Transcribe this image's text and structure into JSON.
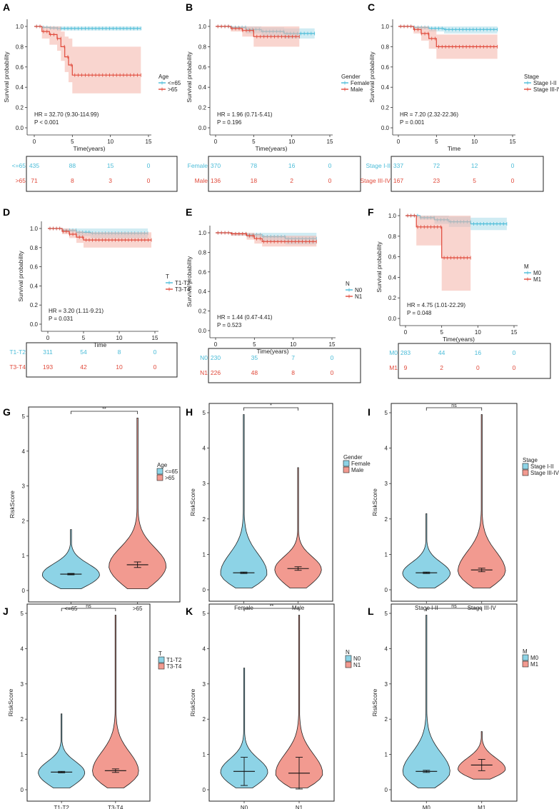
{
  "colors": {
    "blue": "#4bbcd8",
    "red": "#e0493a",
    "blue_fill": "#a9dcea",
    "red_fill": "#f4b2a8",
    "violin_blue": "#8dd3e6",
    "violin_red": "#f29a90"
  },
  "km_axis": {
    "ylabel": "Survival probability",
    "yticks": [
      "0.0",
      "0.2",
      "0.4",
      "0.6",
      "0.8",
      "1.0"
    ],
    "xticks": [
      "0",
      "5",
      "10",
      "15"
    ]
  },
  "violin_axis": {
    "ylabel": "RiskScore",
    "yticks": [
      "0",
      "1",
      "2",
      "3",
      "4",
      "5"
    ]
  },
  "chart_data": [
    {
      "type": "line",
      "panel": "A",
      "legend_title": "Age",
      "xlabel": "Time(years)",
      "xlim": [
        0,
        15
      ],
      "ylim": [
        0,
        1
      ],
      "series": [
        {
          "name": "<=65",
          "color": "blue",
          "x": [
            0,
            1,
            2,
            3,
            5,
            8,
            14
          ],
          "y": [
            1.0,
            0.99,
            0.985,
            0.98,
            0.98,
            0.98,
            0.98
          ],
          "lo": [
            1.0,
            0.98,
            0.97,
            0.96,
            0.96,
            0.96,
            0.96
          ],
          "hi": [
            1.0,
            1.0,
            1.0,
            1.0,
            1.0,
            1.0,
            1.0
          ]
        },
        {
          "name": ">65",
          "color": "red",
          "x": [
            0,
            1,
            2,
            3,
            3.5,
            4,
            4.5,
            5,
            14
          ],
          "y": [
            1.0,
            0.95,
            0.92,
            0.88,
            0.8,
            0.7,
            0.62,
            0.52,
            0.52
          ],
          "lo": [
            1.0,
            0.88,
            0.82,
            0.76,
            0.66,
            0.55,
            0.45,
            0.34,
            0.34
          ],
          "hi": [
            1.0,
            1.0,
            1.0,
            1.0,
            0.95,
            0.9,
            0.88,
            0.8,
            0.8
          ]
        }
      ],
      "stats": {
        "hr": "HR = 32.70 (9.30-114.99)",
        "p": "P < 0.001"
      },
      "risk_table": [
        {
          "label": "<=65",
          "color": "blue",
          "values": [
            "435",
            "88",
            "15",
            "0"
          ]
        },
        {
          "label": ">65",
          "color": "red",
          "values": [
            "71",
            "8",
            "3",
            "0"
          ]
        }
      ]
    },
    {
      "type": "line",
      "panel": "B",
      "legend_title": "Gender",
      "xlabel": "Time(years)",
      "xlim": [
        0,
        15
      ],
      "ylim": [
        0,
        1
      ],
      "series": [
        {
          "name": "Female",
          "color": "blue",
          "x": [
            0,
            2,
            4,
            6,
            9,
            13
          ],
          "y": [
            1.0,
            0.99,
            0.97,
            0.95,
            0.93,
            0.93
          ],
          "lo": [
            1.0,
            0.97,
            0.93,
            0.9,
            0.88,
            0.88
          ],
          "hi": [
            1.0,
            1.0,
            1.0,
            0.99,
            0.98,
            0.98
          ]
        },
        {
          "name": "Male",
          "color": "red",
          "x": [
            0,
            2,
            3.5,
            5,
            11
          ],
          "y": [
            1.0,
            0.98,
            0.96,
            0.9,
            0.9
          ],
          "lo": [
            1.0,
            0.95,
            0.9,
            0.8,
            0.8
          ],
          "hi": [
            1.0,
            1.0,
            1.0,
            1.0,
            1.0
          ]
        }
      ],
      "stats": {
        "hr": "HR = 1.96 (0.71-5.41)",
        "p": "P = 0.196"
      },
      "risk_table": [
        {
          "label": "Female",
          "color": "blue",
          "values": [
            "370",
            "78",
            "16",
            "0"
          ]
        },
        {
          "label": "Male",
          "color": "red",
          "values": [
            "136",
            "18",
            "2",
            "0"
          ]
        }
      ]
    },
    {
      "type": "line",
      "panel": "C",
      "legend_title": "Stage",
      "xlabel": "Time",
      "xlim": [
        0,
        15
      ],
      "ylim": [
        0,
        1
      ],
      "series": [
        {
          "name": "Stage I-II",
          "color": "blue",
          "x": [
            0,
            2,
            4,
            6,
            13
          ],
          "y": [
            1.0,
            0.99,
            0.98,
            0.97,
            0.97
          ],
          "lo": [
            1.0,
            0.97,
            0.95,
            0.93,
            0.93
          ],
          "hi": [
            1.0,
            1.0,
            1.0,
            1.0,
            1.0
          ]
        },
        {
          "name": "Stage III-IV",
          "color": "red",
          "x": [
            0,
            2,
            3,
            4,
            5,
            13
          ],
          "y": [
            1.0,
            0.97,
            0.93,
            0.88,
            0.8,
            0.8
          ],
          "lo": [
            1.0,
            0.93,
            0.86,
            0.78,
            0.68,
            0.68
          ],
          "hi": [
            1.0,
            1.0,
            1.0,
            0.97,
            0.92,
            0.92
          ]
        }
      ],
      "stats": {
        "hr": "HR = 7.20 (2.32-22.36)",
        "p": "P = 0.001"
      },
      "risk_table": [
        {
          "label": "Stage I-II",
          "color": "blue",
          "values": [
            "337",
            "72",
            "12",
            "0"
          ]
        },
        {
          "label": "Stage III-IV",
          "color": "red",
          "values": [
            "167",
            "23",
            "5",
            "0"
          ]
        }
      ]
    },
    {
      "type": "line",
      "panel": "D",
      "legend_title": "T",
      "xlabel": "Time",
      "xlim": [
        0,
        15
      ],
      "ylim": [
        0,
        1
      ],
      "series": [
        {
          "name": "T1-T2",
          "color": "blue",
          "x": [
            0,
            2,
            4,
            6,
            14
          ],
          "y": [
            1.0,
            0.98,
            0.96,
            0.95,
            0.95
          ],
          "lo": [
            1.0,
            0.96,
            0.92,
            0.9,
            0.9
          ],
          "hi": [
            1.0,
            1.0,
            1.0,
            1.0,
            1.0
          ]
        },
        {
          "name": "T3-T4",
          "color": "red",
          "x": [
            0,
            2,
            3,
            4,
            5,
            14.5
          ],
          "y": [
            1.0,
            0.97,
            0.94,
            0.91,
            0.88,
            0.88
          ],
          "lo": [
            1.0,
            0.94,
            0.9,
            0.85,
            0.8,
            0.8
          ],
          "hi": [
            1.0,
            1.0,
            0.99,
            0.97,
            0.96,
            0.96
          ]
        }
      ],
      "stats": {
        "hr": "HR = 3.20 (1.11-9.21)",
        "p": "P = 0.031"
      },
      "risk_table": [
        {
          "label": "T1-T2",
          "color": "blue",
          "values": [
            "311",
            "54",
            "8",
            "0"
          ]
        },
        {
          "label": "T3-T4",
          "color": "red",
          "values": [
            "193",
            "42",
            "10",
            "0"
          ]
        }
      ]
    },
    {
      "type": "line",
      "panel": "E",
      "legend_title": "N",
      "xlabel": "Time(years)",
      "xlim": [
        0,
        15
      ],
      "ylim": [
        0,
        1
      ],
      "series": [
        {
          "name": "N0",
          "color": "blue",
          "x": [
            0,
            2,
            4,
            6,
            9,
            13
          ],
          "y": [
            1.0,
            0.99,
            0.98,
            0.96,
            0.94,
            0.94
          ],
          "lo": [
            1.0,
            0.97,
            0.95,
            0.91,
            0.88,
            0.88
          ],
          "hi": [
            1.0,
            1.0,
            1.0,
            1.0,
            1.0,
            1.0
          ]
        },
        {
          "name": "N1",
          "color": "red",
          "x": [
            0,
            2,
            4,
            5,
            6,
            13
          ],
          "y": [
            1.0,
            0.99,
            0.97,
            0.94,
            0.91,
            0.91
          ],
          "lo": [
            1.0,
            0.97,
            0.93,
            0.89,
            0.86,
            0.86
          ],
          "hi": [
            1.0,
            1.0,
            1.0,
            0.99,
            0.97,
            0.97
          ]
        }
      ],
      "stats": {
        "hr": "HR = 1.44 (0.47-4.41)",
        "p": "P = 0.523"
      },
      "risk_table": [
        {
          "label": "N0",
          "color": "blue",
          "values": [
            "230",
            "35",
            "7",
            "0"
          ]
        },
        {
          "label": "N1",
          "color": "red",
          "values": [
            "226",
            "48",
            "8",
            "0"
          ]
        }
      ]
    },
    {
      "type": "line",
      "panel": "F",
      "legend_title": "M",
      "xlabel": "Time(years)",
      "xlim": [
        0,
        15
      ],
      "ylim": [
        0,
        1
      ],
      "series": [
        {
          "name": "M0",
          "color": "blue",
          "x": [
            0,
            2,
            4,
            6,
            9,
            14
          ],
          "y": [
            1.0,
            0.98,
            0.96,
            0.94,
            0.92,
            0.92
          ],
          "lo": [
            1.0,
            0.96,
            0.92,
            0.89,
            0.86,
            0.86
          ],
          "hi": [
            1.0,
            1.0,
            1.0,
            0.99,
            0.98,
            0.98
          ]
        },
        {
          "name": "M1",
          "color": "red",
          "x": [
            0,
            1.5,
            5,
            9
          ],
          "y": [
            1.0,
            0.89,
            0.59,
            0.59
          ],
          "lo": [
            1.0,
            0.71,
            0.27,
            0.27
          ],
          "hi": [
            1.0,
            1.0,
            1.0,
            1.0
          ]
        }
      ],
      "stats": {
        "hr": "HR = 4.75 (1.01-22.29)",
        "p": "P = 0.048"
      },
      "risk_table": [
        {
          "label": "M0",
          "color": "blue",
          "values": [
            "283",
            "44",
            "16",
            "0"
          ]
        },
        {
          "label": "M1",
          "color": "red",
          "values": [
            "9",
            "2",
            "0",
            "0"
          ]
        }
      ]
    },
    {
      "type": "violin",
      "panel": "G",
      "legend_title": "Age",
      "ylim": [
        0,
        5
      ],
      "significance": "**",
      "groups": [
        {
          "name": "<=65",
          "color": "blue",
          "min": 0.05,
          "max": 1.75,
          "median": 0.47,
          "mean": 0.47,
          "se": 0.02
        },
        {
          "name": ">65",
          "color": "red",
          "min": 0.05,
          "max": 4.95,
          "median": 0.72,
          "mean": 0.74,
          "se": 0.08
        }
      ]
    },
    {
      "type": "violin",
      "panel": "H",
      "legend_title": "Gender",
      "ylim": [
        0,
        5
      ],
      "significance": "*",
      "groups": [
        {
          "name": "Female",
          "color": "blue",
          "min": 0.05,
          "max": 4.95,
          "median": 0.48,
          "mean": 0.48,
          "se": 0.02
        },
        {
          "name": "Male",
          "color": "red",
          "min": 0.05,
          "max": 3.45,
          "median": 0.59,
          "mean": 0.6,
          "se": 0.05
        }
      ]
    },
    {
      "type": "violin",
      "panel": "I",
      "legend_title": "Stage",
      "ylim": [
        0,
        5
      ],
      "significance": "ns",
      "groups": [
        {
          "name": "Stage I-II",
          "color": "blue",
          "min": 0.05,
          "max": 2.15,
          "median": 0.48,
          "mean": 0.48,
          "se": 0.02
        },
        {
          "name": "Stage III-IV",
          "color": "red",
          "min": 0.05,
          "max": 4.95,
          "median": 0.55,
          "mean": 0.56,
          "se": 0.05
        }
      ]
    },
    {
      "type": "violin",
      "panel": "J",
      "legend_title": "T",
      "ylim": [
        0,
        5
      ],
      "significance": "ns",
      "groups": [
        {
          "name": "T1-T2",
          "color": "blue",
          "min": 0.05,
          "max": 2.15,
          "median": 0.5,
          "mean": 0.5,
          "se": 0.02
        },
        {
          "name": "T3-T4",
          "color": "red",
          "min": 0.05,
          "max": 4.95,
          "median": 0.53,
          "mean": 0.54,
          "se": 0.05
        }
      ]
    },
    {
      "type": "violin",
      "panel": "K",
      "legend_title": "N",
      "ylim": [
        0,
        5
      ],
      "significance": "**",
      "groups": [
        {
          "name": "N0",
          "color": "blue",
          "min": 0.05,
          "max": 3.45,
          "median": 0.52,
          "mean": 0.52,
          "se": 0.4
        },
        {
          "name": "N1",
          "color": "red",
          "min": 0.05,
          "max": 4.95,
          "median": 0.47,
          "mean": 0.47,
          "se": 0.45
        }
      ]
    },
    {
      "type": "violin",
      "panel": "L",
      "legend_title": "M",
      "ylim": [
        0,
        5
      ],
      "significance": "ns",
      "groups": [
        {
          "name": "M0",
          "color": "blue",
          "min": 0.05,
          "max": 4.95,
          "median": 0.52,
          "mean": 0.52,
          "se": 0.03
        },
        {
          "name": "M1",
          "color": "red",
          "min": 0.3,
          "max": 1.65,
          "median": 0.6,
          "mean": 0.7,
          "se": 0.16
        }
      ]
    }
  ]
}
